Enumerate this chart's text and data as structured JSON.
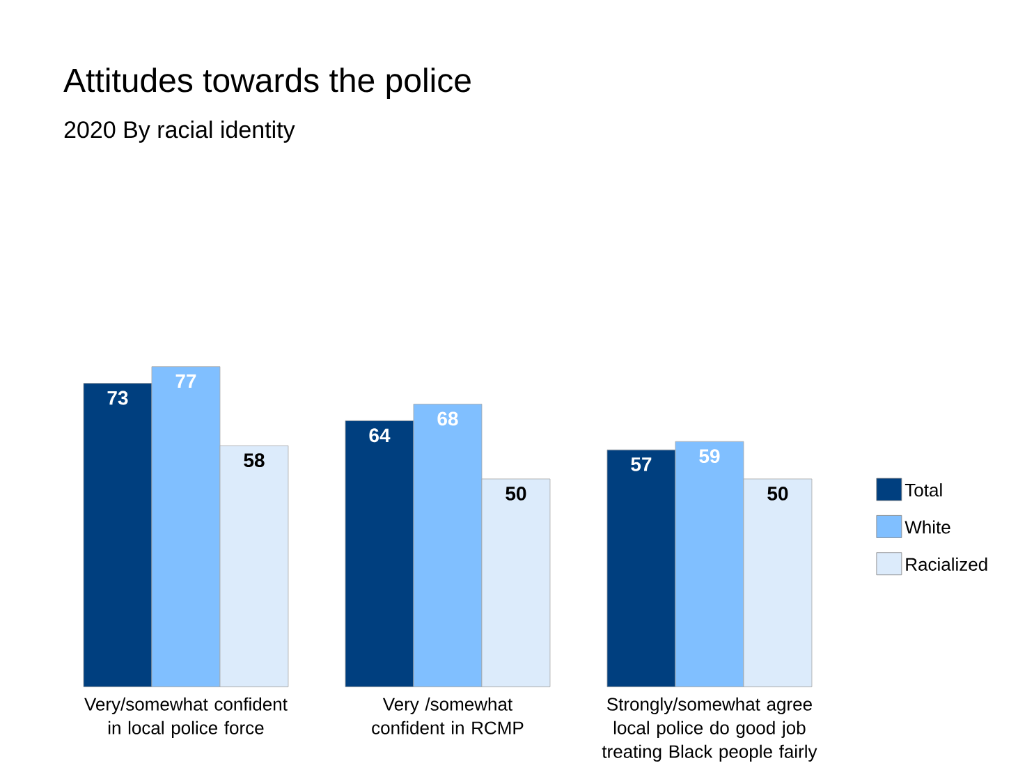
{
  "chart_data": {
    "type": "bar",
    "title": "Attitudes towards the police",
    "subtitle": "2020 By racial identity",
    "categories": [
      "Very/somewhat confident in local police force",
      "Very /somewhat confident in RCMP",
      "Strongly/somewhat agree local police do good job treating Black people fairly"
    ],
    "series": [
      {
        "name": "Total",
        "color": "#003f7f",
        "values": [
          73,
          64,
          57
        ]
      },
      {
        "name": "White",
        "color": "#80bfff",
        "values": [
          77,
          68,
          59
        ]
      },
      {
        "name": "Racialized",
        "color": "#dcebfb",
        "values": [
          58,
          50,
          50
        ]
      }
    ],
    "data_labels": true,
    "legend": "right"
  }
}
